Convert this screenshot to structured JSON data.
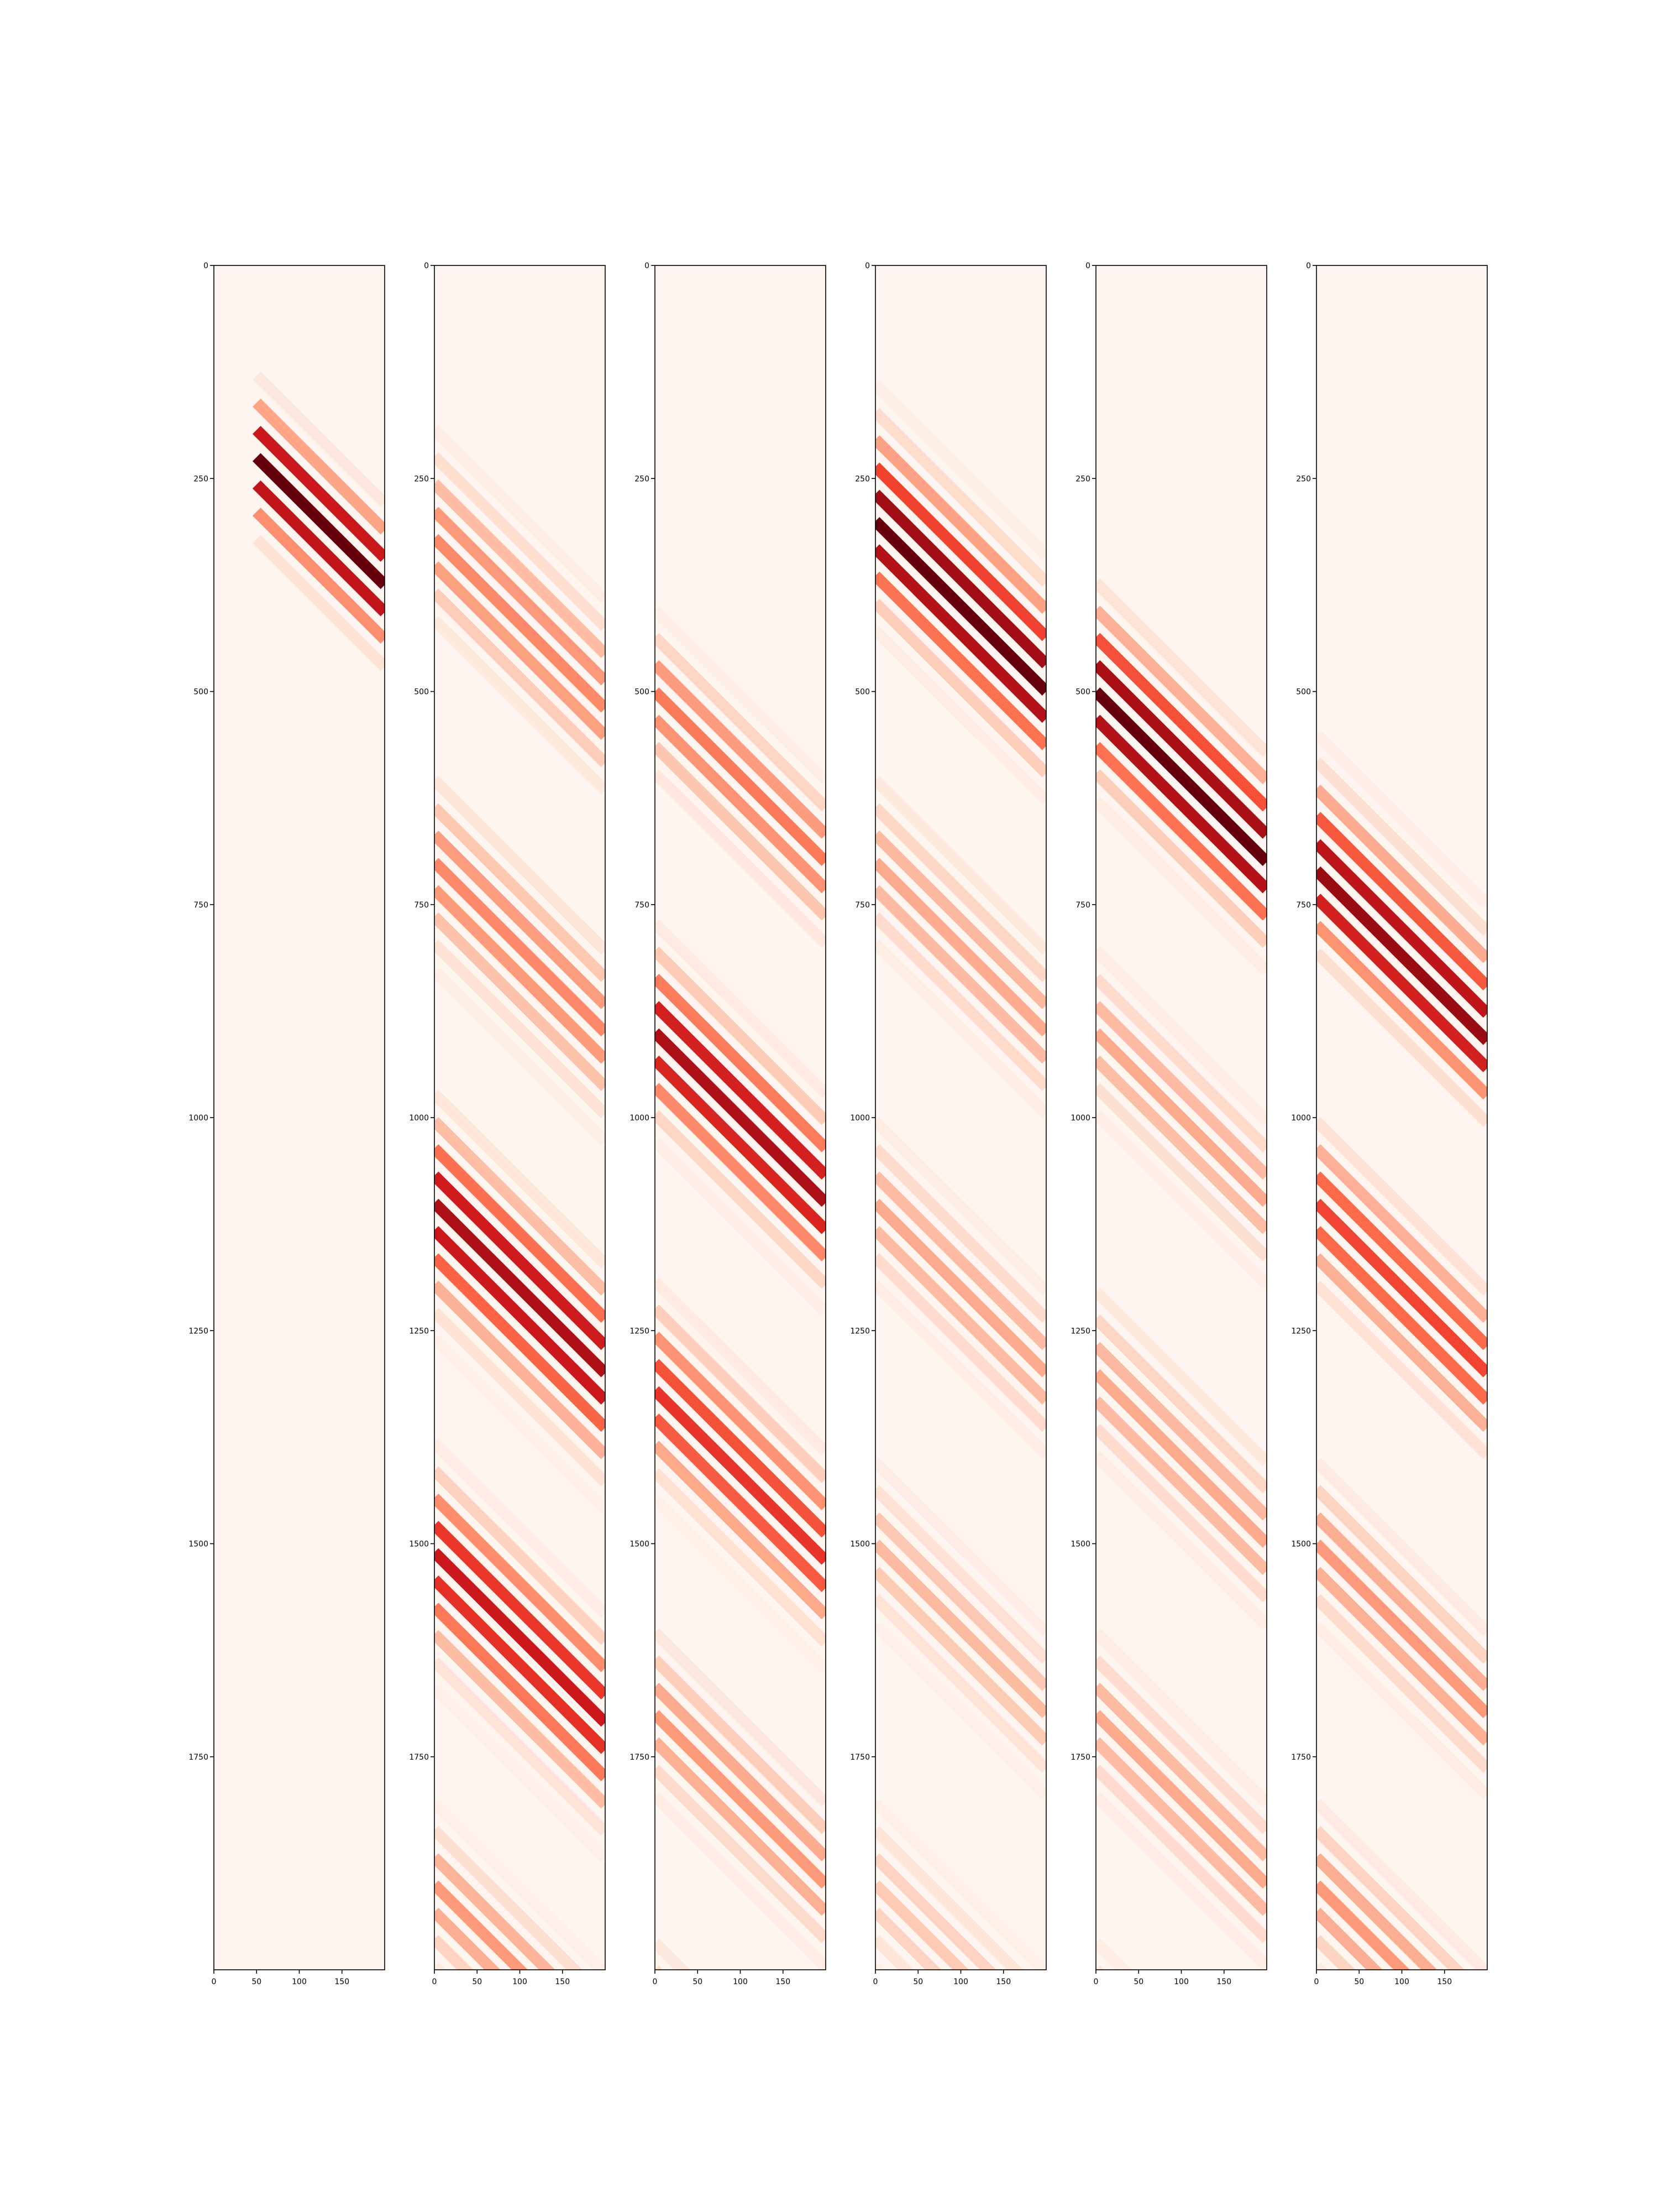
{
  "colors": {
    "background": "#fff5f0",
    "axis": "#000000",
    "colormap": "Reds",
    "ramp": [
      "#fff5f0",
      "#fee0d2",
      "#fcbba1",
      "#fc9272",
      "#fb6a4a",
      "#ef3b2c",
      "#cb181d",
      "#a50f15",
      "#67000d"
    ]
  },
  "chart_data": [
    {
      "type": "heatmap",
      "title": "",
      "xlabel": "",
      "ylabel": "",
      "xlim": [
        0,
        200
      ],
      "ylim": [
        0,
        2000
      ],
      "y_inverted": true,
      "xticks": [
        0,
        50,
        100,
        150
      ],
      "yticks": [
        0,
        250,
        500,
        750,
        1000,
        1250,
        1500,
        1750
      ],
      "grid": false,
      "pattern": "diagonal stripes, slope 1 row per column",
      "stripe_spacing_rows": 32,
      "data_start_column": 50,
      "bands": [
        {
          "start_row_at_column_0": 100,
          "center_stripe_row_at_column_0": 175,
          "end_row_at_column_0": 260,
          "peak_intensity": 1.0
        }
      ]
    },
    {
      "type": "heatmap",
      "title": "",
      "xlabel": "",
      "ylabel": "",
      "xlim": [
        0,
        200
      ],
      "ylim": [
        0,
        2000
      ],
      "y_inverted": true,
      "xticks": [
        0,
        50,
        100,
        150
      ],
      "yticks": [
        0,
        250,
        500,
        750,
        1000,
        1250,
        1500,
        1750
      ],
      "grid": false,
      "pattern": "diagonal stripes, slope 1 row per column",
      "stripe_spacing_rows": 32,
      "data_start_column": 0,
      "bands": [
        {
          "start_row_at_column_0": 190,
          "center_stripe_row_at_column_0": 320,
          "end_row_at_column_0": 420,
          "peak_intensity": 0.4
        },
        {
          "start_row_at_column_0": 590,
          "center_stripe_row_at_column_0": 700,
          "end_row_at_column_0": 820,
          "peak_intensity": 0.4
        },
        {
          "start_row_at_column_0": 980,
          "center_stripe_row_at_column_0": 1100,
          "end_row_at_column_0": 1230,
          "peak_intensity": 0.85
        },
        {
          "start_row_at_column_0": 1400,
          "center_stripe_row_at_column_0": 1510,
          "end_row_at_column_0": 1640,
          "peak_intensity": 0.75
        },
        {
          "start_row_at_column_0": 1820,
          "center_stripe_row_at_column_0": 1900,
          "end_row_at_column_0": 2000,
          "peak_intensity": 0.35
        }
      ]
    },
    {
      "type": "heatmap",
      "title": "",
      "xlabel": "",
      "ylabel": "",
      "xlim": [
        0,
        200
      ],
      "ylim": [
        0,
        2000
      ],
      "y_inverted": true,
      "xticks": [
        0,
        50,
        100,
        150
      ],
      "yticks": [
        0,
        250,
        500,
        750,
        1000,
        1250,
        1500,
        1750
      ],
      "grid": false,
      "pattern": "diagonal stripes, slope 1 row per column",
      "stripe_spacing_rows": 32,
      "data_start_column": 0,
      "bands": [
        {
          "start_row_at_column_0": 420,
          "center_stripe_row_at_column_0": 500,
          "end_row_at_column_0": 600,
          "peak_intensity": 0.45
        },
        {
          "start_row_at_column_0": 790,
          "center_stripe_row_at_column_0": 900,
          "end_row_at_column_0": 1000,
          "peak_intensity": 0.85
        },
        {
          "start_row_at_column_0": 1200,
          "center_stripe_row_at_column_0": 1320,
          "end_row_at_column_0": 1420,
          "peak_intensity": 0.65
        },
        {
          "start_row_at_column_0": 1590,
          "center_stripe_row_at_column_0": 1700,
          "end_row_at_column_0": 1790,
          "peak_intensity": 0.35
        },
        {
          "start_row_at_column_0": 1960,
          "center_stripe_row_at_column_0": 2000,
          "end_row_at_column_0": 2000,
          "peak_intensity": 0.15
        }
      ]
    },
    {
      "type": "heatmap",
      "title": "",
      "xlabel": "",
      "ylabel": "",
      "xlim": [
        0,
        200
      ],
      "ylim": [
        0,
        2000
      ],
      "y_inverted": true,
      "xticks": [
        0,
        50,
        100,
        150
      ],
      "yticks": [
        0,
        250,
        500,
        750,
        1000,
        1250,
        1500,
        1750
      ],
      "grid": false,
      "pattern": "diagonal stripes, slope 1 row per column",
      "stripe_spacing_rows": 32,
      "data_start_column": 0,
      "bands": [
        {
          "start_row_at_column_0": 170,
          "center_stripe_row_at_column_0": 300,
          "end_row_at_column_0": 400,
          "peak_intensity": 1.0
        },
        {
          "start_row_at_column_0": 590,
          "center_stripe_row_at_column_0": 700,
          "end_row_at_column_0": 800,
          "peak_intensity": 0.3
        },
        {
          "start_row_at_column_0": 1000,
          "center_stripe_row_at_column_0": 1100,
          "end_row_at_column_0": 1200,
          "peak_intensity": 0.3
        },
        {
          "start_row_at_column_0": 1400,
          "center_stripe_row_at_column_0": 1500,
          "end_row_at_column_0": 1590,
          "peak_intensity": 0.25
        },
        {
          "start_row_at_column_0": 1800,
          "center_stripe_row_at_column_0": 1900,
          "end_row_at_column_0": 2000,
          "peak_intensity": 0.2
        }
      ]
    },
    {
      "type": "heatmap",
      "title": "",
      "xlabel": "",
      "ylabel": "",
      "xlim": [
        0,
        200
      ],
      "ylim": [
        0,
        2000
      ],
      "y_inverted": true,
      "xticks": [
        0,
        50,
        100,
        150
      ],
      "yticks": [
        0,
        250,
        500,
        750,
        1000,
        1250,
        1500,
        1750
      ],
      "grid": false,
      "pattern": "diagonal stripes, slope 1 row per column",
      "stripe_spacing_rows": 32,
      "data_start_column": 0,
      "bands": [
        {
          "start_row_at_column_0": 380,
          "center_stripe_row_at_column_0": 500,
          "end_row_at_column_0": 600,
          "peak_intensity": 1.0
        },
        {
          "start_row_at_column_0": 800,
          "center_stripe_row_at_column_0": 900,
          "end_row_at_column_0": 990,
          "peak_intensity": 0.3
        },
        {
          "start_row_at_column_0": 1190,
          "center_stripe_row_at_column_0": 1300,
          "end_row_at_column_0": 1400,
          "peak_intensity": 0.3
        },
        {
          "start_row_at_column_0": 1600,
          "center_stripe_row_at_column_0": 1700,
          "end_row_at_column_0": 1800,
          "peak_intensity": 0.3
        },
        {
          "start_row_at_column_0": 1960,
          "center_stripe_row_at_column_0": 2000,
          "end_row_at_column_0": 2000,
          "peak_intensity": 0.1
        }
      ]
    },
    {
      "type": "heatmap",
      "title": "",
      "xlabel": "",
      "ylabel": "",
      "xlim": [
        0,
        200
      ],
      "ylim": [
        0,
        2000
      ],
      "y_inverted": true,
      "xticks": [
        0,
        50,
        100,
        150
      ],
      "yticks": [
        0,
        250,
        500,
        750,
        1000,
        1250,
        1500,
        1750
      ],
      "grid": false,
      "pattern": "diagonal stripes, slope 1 row per column",
      "stripe_spacing_rows": 32,
      "data_start_column": 0,
      "bands": [
        {
          "start_row_at_column_0": 580,
          "center_stripe_row_at_column_0": 710,
          "end_row_at_column_0": 800,
          "peak_intensity": 0.9
        },
        {
          "start_row_at_column_0": 1000,
          "center_stripe_row_at_column_0": 1100,
          "end_row_at_column_0": 1200,
          "peak_intensity": 0.6
        },
        {
          "start_row_at_column_0": 1400,
          "center_stripe_row_at_column_0": 1500,
          "end_row_at_column_0": 1590,
          "peak_intensity": 0.35
        },
        {
          "start_row_at_column_0": 1800,
          "center_stripe_row_at_column_0": 1900,
          "end_row_at_column_0": 2000,
          "peak_intensity": 0.35
        }
      ]
    }
  ]
}
